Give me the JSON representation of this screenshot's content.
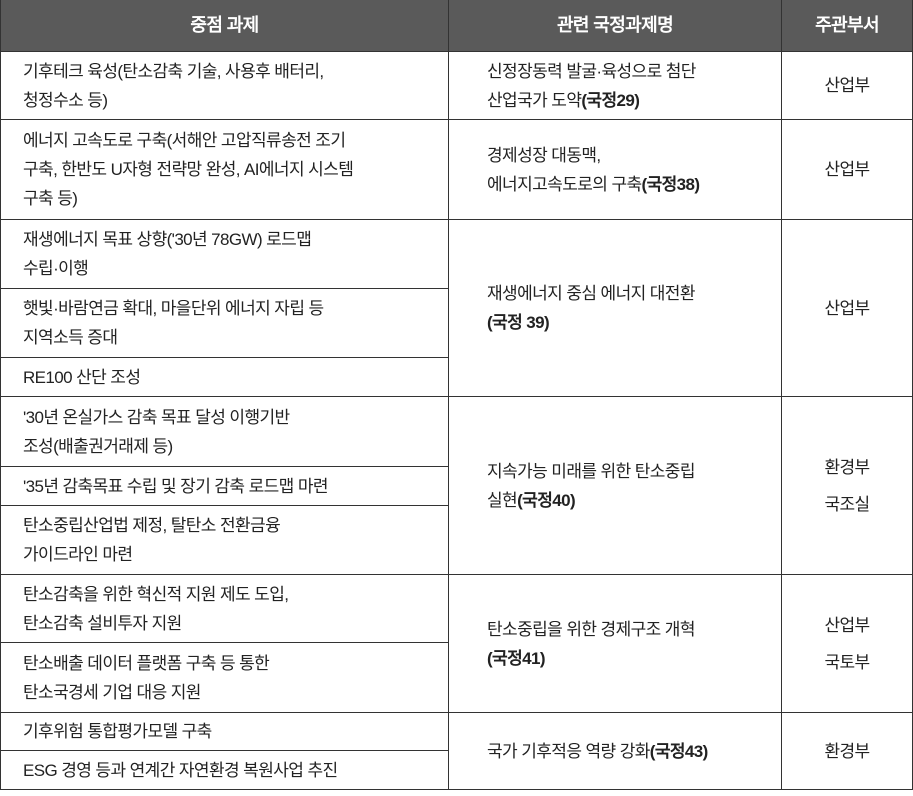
{
  "headers": [
    "중점 과제",
    "관련 국정과제명",
    "주관부서"
  ],
  "groups": [
    {
      "items": [
        [
          "기후테크 육성(탄소감축 기술, 사용후 배터리,",
          "청정수소 등)"
        ]
      ],
      "task": {
        "lines": [
          {
            "text": "신정장동력 발굴·육성으로 첨단",
            "bold": ""
          },
          {
            "text": "산업국가 도약",
            "bold": "(국정29)"
          }
        ]
      },
      "depts": [
        "산업부"
      ]
    },
    {
      "items": [
        [
          "에너지 고속도로 구축(서해안 고압직류송전 조기",
          "구축, 한반도 U자형 전략망 완성, AI에너지 시스템",
          "구축 등)"
        ]
      ],
      "task": {
        "lines": [
          {
            "text": "경제성장 대동맥,",
            "bold": ""
          },
          {
            "text": "에너지고속도로의 구축",
            "bold": "(국정38)"
          }
        ]
      },
      "depts": [
        "산업부"
      ]
    },
    {
      "items": [
        [
          "재생에너지 목표 상향('30년 78GW) 로드맵",
          "수립·이행"
        ],
        [
          "햇빛·바람연금 확대, 마을단위 에너지 자립 등",
          "지역소득 증대"
        ],
        [
          "RE100 산단 조성"
        ]
      ],
      "task": {
        "lines": [
          {
            "text": "재생에너지 중심 에너지 대전환",
            "bold": ""
          },
          {
            "text": "",
            "bold": "(국정 39)"
          }
        ]
      },
      "depts": [
        "산업부"
      ]
    },
    {
      "items": [
        [
          "'30년 온실가스 감축 목표 달성 이행기반",
          "조성(배출권거래제 등)"
        ],
        [
          "'35년 감축목표 수립 및 장기 감축 로드맵 마련"
        ],
        [
          "탄소중립산업법 제정, 탈탄소 전환금융",
          "가이드라인 마련"
        ]
      ],
      "task": {
        "lines": [
          {
            "text": "지속가능 미래를 위한 탄소중립",
            "bold": ""
          },
          {
            "text": "실현",
            "bold": "(국정40)"
          }
        ]
      },
      "depts": [
        "환경부",
        "국조실"
      ]
    },
    {
      "items": [
        [
          "탄소감축을 위한 혁신적 지원 제도 도입,",
          "탄소감축 설비투자 지원"
        ],
        [
          "탄소배출 데이터 플랫폼 구축 등 통한",
          "탄소국경세 기업 대응 지원"
        ]
      ],
      "task": {
        "lines": [
          {
            "text": "탄소중립을 위한 경제구조 개혁",
            "bold": ""
          },
          {
            "text": "",
            "bold": "(국정41)"
          }
        ]
      },
      "depts": [
        "산업부",
        "국토부"
      ]
    },
    {
      "items": [
        [
          "기후위험 통합평가모델 구축"
        ],
        [
          "ESG 경영 등과 연계간 자연환경 복원사업 추진"
        ]
      ],
      "task": {
        "lines": [
          {
            "text": "국가 기후적응 역량 강화",
            "bold": "(국정43)"
          }
        ]
      },
      "depts": [
        "환경부"
      ]
    }
  ]
}
